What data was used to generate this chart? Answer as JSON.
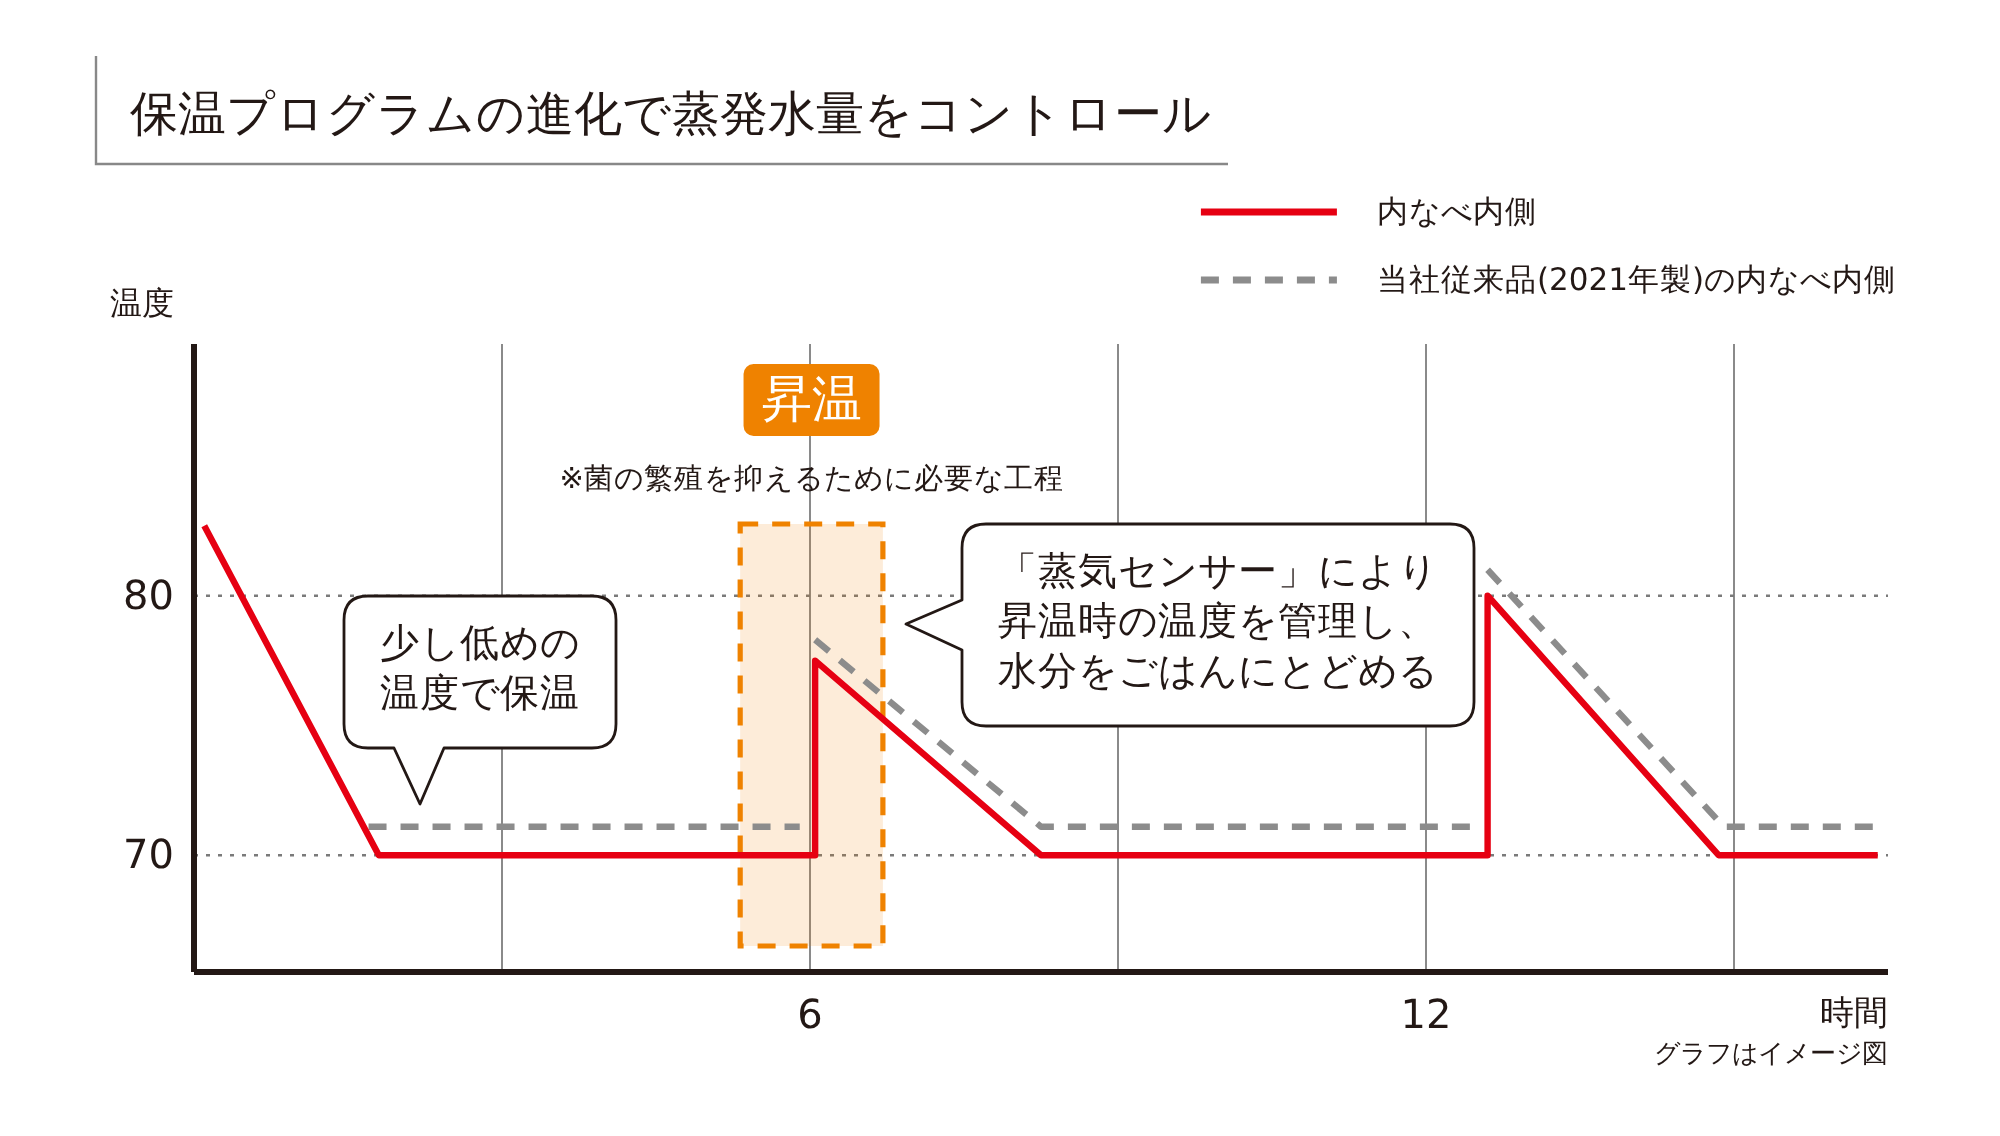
{
  "chart_data": {
    "type": "line",
    "title": "保温プログラムの進化で蒸発水量をコントロール",
    "xlabel": "時間",
    "ylabel": "温度",
    "xlim": [
      0,
      16.5
    ],
    "ylim": [
      65.5,
      89.7
    ],
    "xticks": [
      {
        "value": 3,
        "label": null
      },
      6,
      {
        "value": 9,
        "label": null
      },
      12,
      {
        "value": 15,
        "label": null
      }
    ],
    "yticks": [
      70,
      80
    ],
    "grid": true,
    "legend": "top right",
    "series": [
      {
        "name": "内なべ内側",
        "color": "#e60012",
        "line_style": "solid",
        "x": [
          0.1,
          1.8,
          6.05,
          6.05,
          8.25,
          12.6,
          12.6,
          14.85,
          16.4
        ],
        "values": [
          82.7,
          70,
          70,
          77.5,
          70,
          70,
          80,
          70,
          70
        ]
      },
      {
        "name": "当社従来品(2021年製)の内なべ内側",
        "color": "#8c8c8c",
        "line_style": "dashed",
        "x": [
          1.7,
          5.9,
          6.0,
          6.05,
          8.25,
          12.5,
          12.55,
          12.6,
          14.9,
          16.4
        ],
        "values": [
          71.1,
          71.1,
          null,
          78.3,
          71.1,
          71.1,
          null,
          81,
          71.1,
          71.1
        ]
      }
    ],
    "bands": [
      {
        "axis": "x",
        "from": 5.32,
        "to": 6.71,
        "label": "昇温",
        "color": "#ef8200"
      }
    ],
    "annotations": [
      "※菌の繁殖を抑えるために必要な工程",
      "少し低めの温度で保温",
      "「蒸気センサー」により昇温時の温度を管理し、水分をごはんにとどめる",
      "グラフはイメージ図"
    ]
  }
}
